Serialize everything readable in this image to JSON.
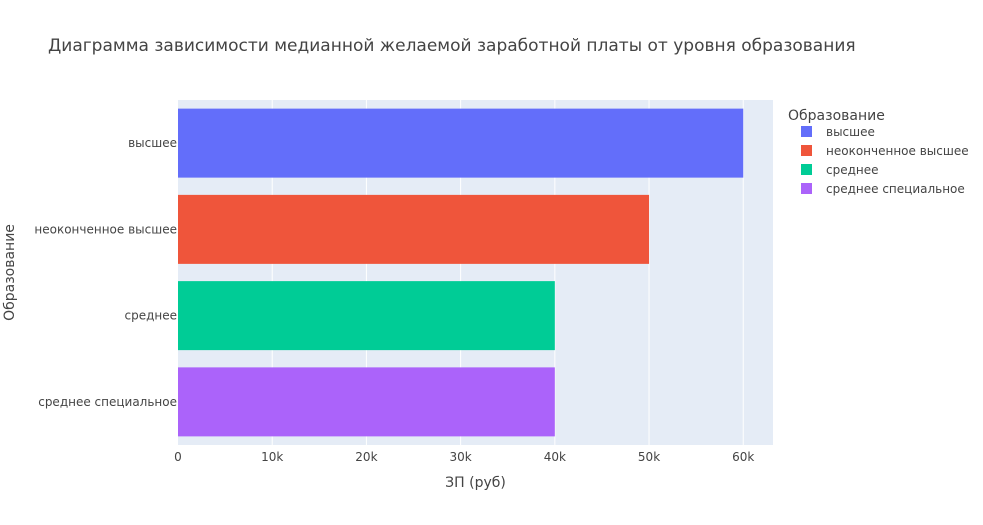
{
  "chart_data": {
    "type": "bar",
    "orientation": "horizontal",
    "title": "Диаграмма зависимости медианной желаемой заработной платы от уровня образования",
    "xlabel": "ЗП (руб)",
    "ylabel": "Образование",
    "xlim": [
      0,
      63158
    ],
    "x_ticks": [
      0,
      10000,
      20000,
      30000,
      40000,
      50000,
      60000
    ],
    "x_tick_labels": [
      "0",
      "10k",
      "20k",
      "30k",
      "40k",
      "50k",
      "60k"
    ],
    "grid": true,
    "legend_title": "Образование",
    "legend_position": "top-right",
    "series": [
      {
        "name": "высшее",
        "category": "высшее",
        "value": 60000,
        "color": "#636efa"
      },
      {
        "name": "неоконченное высшее",
        "category": "неоконченное высшее",
        "value": 50000,
        "color": "#ef553b"
      },
      {
        "name": "среднее",
        "category": "среднее",
        "value": 40000,
        "color": "#00cc96"
      },
      {
        "name": "среднее специальное",
        "category": "среднее специальное",
        "value": 40000,
        "color": "#ab63fa"
      }
    ],
    "plot_bg": "#e5ecf6"
  }
}
